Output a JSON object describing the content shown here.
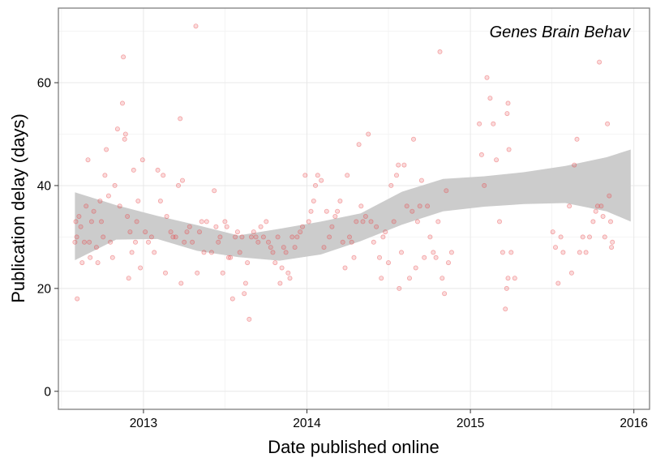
{
  "chart_data": {
    "type": "scatter",
    "annotation": "Genes Brain Behav",
    "xlabel": "Date published online",
    "ylabel": "Publication delay (days)",
    "xlim": [
      "2012-06-25",
      "2016-02-05"
    ],
    "ylim": [
      -3.5,
      74.5
    ],
    "x_ticks": [
      "2013",
      "2014",
      "2015",
      "2016"
    ],
    "y_ticks": [
      0,
      20,
      40,
      60
    ],
    "grid": true,
    "point_color": "#e8484a",
    "band_color": "#cccccc",
    "points": [
      [
        "2012-08-01",
        29
      ],
      [
        "2012-08-03",
        33
      ],
      [
        "2012-08-05",
        30
      ],
      [
        "2012-08-06",
        18
      ],
      [
        "2012-08-10",
        34
      ],
      [
        "2012-08-14",
        32
      ],
      [
        "2012-08-17",
        25
      ],
      [
        "2012-08-22",
        29
      ],
      [
        "2012-08-26",
        36
      ],
      [
        "2012-08-30",
        45
      ],
      [
        "2012-09-02",
        29
      ],
      [
        "2012-09-04",
        26
      ],
      [
        "2012-09-07",
        33
      ],
      [
        "2012-09-12",
        35
      ],
      [
        "2012-09-18",
        28
      ],
      [
        "2012-09-21",
        25
      ],
      [
        "2012-09-26",
        37
      ],
      [
        "2012-09-29",
        33
      ],
      [
        "2012-10-03",
        30
      ],
      [
        "2012-10-07",
        42
      ],
      [
        "2012-10-10",
        47
      ],
      [
        "2012-10-15",
        38
      ],
      [
        "2012-10-19",
        29
      ],
      [
        "2012-10-24",
        26
      ],
      [
        "2012-10-29",
        40
      ],
      [
        "2012-11-04",
        51
      ],
      [
        "2012-11-09",
        36
      ],
      [
        "2012-11-15",
        56
      ],
      [
        "2012-11-17",
        65
      ],
      [
        "2012-11-20",
        49
      ],
      [
        "2012-11-22",
        50
      ],
      [
        "2012-11-26",
        34
      ],
      [
        "2012-11-29",
        22
      ],
      [
        "2012-12-02",
        31
      ],
      [
        "2012-12-06",
        27
      ],
      [
        "2012-12-10",
        43
      ],
      [
        "2012-12-14",
        29
      ],
      [
        "2012-12-17",
        33
      ],
      [
        "2012-12-20",
        37
      ],
      [
        "2012-12-25",
        24
      ],
      [
        "2012-12-30",
        45
      ],
      [
        "2013-01-05",
        31
      ],
      [
        "2013-01-12",
        29
      ],
      [
        "2013-01-19",
        30
      ],
      [
        "2013-01-25",
        27
      ],
      [
        "2013-02-02",
        43
      ],
      [
        "2013-02-08",
        37
      ],
      [
        "2013-02-14",
        42
      ],
      [
        "2013-02-19",
        23
      ],
      [
        "2013-02-22",
        34
      ],
      [
        "2013-03-03",
        31
      ],
      [
        "2013-03-08",
        30
      ],
      [
        "2013-03-14",
        30
      ],
      [
        "2013-03-20",
        40
      ],
      [
        "2013-03-24",
        53
      ],
      [
        "2013-03-26",
        21
      ],
      [
        "2013-03-29",
        41
      ],
      [
        "2013-04-02",
        29
      ],
      [
        "2013-04-08",
        31
      ],
      [
        "2013-04-14",
        32
      ],
      [
        "2013-04-20",
        29
      ],
      [
        "2013-04-28",
        71
      ],
      [
        "2013-05-01",
        23
      ],
      [
        "2013-05-06",
        31
      ],
      [
        "2013-05-11",
        33
      ],
      [
        "2013-05-16",
        27
      ],
      [
        "2013-05-22",
        33
      ],
      [
        "2013-06-02",
        27
      ],
      [
        "2013-06-08",
        39
      ],
      [
        "2013-06-12",
        32
      ],
      [
        "2013-06-17",
        29
      ],
      [
        "2013-06-21",
        30
      ],
      [
        "2013-06-27",
        23
      ],
      [
        "2013-07-02",
        33
      ],
      [
        "2013-07-06",
        32
      ],
      [
        "2013-07-10",
        26
      ],
      [
        "2013-07-14",
        26
      ],
      [
        "2013-07-19",
        18
      ],
      [
        "2013-07-25",
        30
      ],
      [
        "2013-07-30",
        31
      ],
      [
        "2013-08-04",
        27
      ],
      [
        "2013-08-09",
        30
      ],
      [
        "2013-08-14",
        19
      ],
      [
        "2013-08-17",
        21
      ],
      [
        "2013-08-21",
        25
      ],
      [
        "2013-08-25",
        14
      ],
      [
        "2013-08-30",
        30
      ],
      [
        "2013-09-04",
        31
      ],
      [
        "2013-09-09",
        30
      ],
      [
        "2013-09-14",
        29
      ],
      [
        "2013-09-20",
        32
      ],
      [
        "2013-09-26",
        30
      ],
      [
        "2013-10-02",
        33
      ],
      [
        "2013-10-07",
        29
      ],
      [
        "2013-10-12",
        28
      ],
      [
        "2013-10-17",
        27
      ],
      [
        "2013-10-22",
        25
      ],
      [
        "2013-10-28",
        30
      ],
      [
        "2013-11-02",
        21
      ],
      [
        "2013-11-06",
        24
      ],
      [
        "2013-11-10",
        28
      ],
      [
        "2013-11-15",
        27
      ],
      [
        "2013-11-20",
        23
      ],
      [
        "2013-11-24",
        22
      ],
      [
        "2013-11-29",
        30
      ],
      [
        "2013-12-05",
        28
      ],
      [
        "2013-12-10",
        30
      ],
      [
        "2013-12-17",
        31
      ],
      [
        "2013-12-22",
        32
      ],
      [
        "2013-12-28",
        42
      ],
      [
        "2014-01-05",
        33
      ],
      [
        "2014-01-10",
        35
      ],
      [
        "2014-01-16",
        37
      ],
      [
        "2014-01-20",
        40
      ],
      [
        "2014-01-25",
        42
      ],
      [
        "2014-02-02",
        41
      ],
      [
        "2014-02-08",
        28
      ],
      [
        "2014-02-14",
        35
      ],
      [
        "2014-02-20",
        30
      ],
      [
        "2014-02-26",
        32
      ],
      [
        "2014-03-05",
        34
      ],
      [
        "2014-03-10",
        35
      ],
      [
        "2014-03-16",
        37
      ],
      [
        "2014-03-22",
        29
      ],
      [
        "2014-03-27",
        24
      ],
      [
        "2014-04-01",
        42
      ],
      [
        "2014-04-06",
        30
      ],
      [
        "2014-04-11",
        29
      ],
      [
        "2014-04-16",
        26
      ],
      [
        "2014-04-21",
        33
      ],
      [
        "2014-04-27",
        48
      ],
      [
        "2014-05-02",
        36
      ],
      [
        "2014-05-06",
        33
      ],
      [
        "2014-05-12",
        34
      ],
      [
        "2014-05-18",
        50
      ],
      [
        "2014-05-24",
        33
      ],
      [
        "2014-05-30",
        29
      ],
      [
        "2014-06-05",
        32
      ],
      [
        "2014-06-12",
        26
      ],
      [
        "2014-06-16",
        22
      ],
      [
        "2014-06-20",
        30
      ],
      [
        "2014-06-25",
        31
      ],
      [
        "2014-07-02",
        25
      ],
      [
        "2014-07-08",
        40
      ],
      [
        "2014-07-14",
        33
      ],
      [
        "2014-07-20",
        42
      ],
      [
        "2014-07-24",
        44
      ],
      [
        "2014-07-26",
        20
      ],
      [
        "2014-07-31",
        27
      ],
      [
        "2014-08-06",
        44
      ],
      [
        "2014-08-12",
        36
      ],
      [
        "2014-08-18",
        22
      ],
      [
        "2014-08-24",
        35
      ],
      [
        "2014-08-27",
        49
      ],
      [
        "2014-09-01",
        24
      ],
      [
        "2014-09-05",
        33
      ],
      [
        "2014-09-10",
        36
      ],
      [
        "2014-09-14",
        41
      ],
      [
        "2014-09-20",
        26
      ],
      [
        "2014-09-27",
        36
      ],
      [
        "2014-10-03",
        30
      ],
      [
        "2014-10-10",
        27
      ],
      [
        "2014-10-16",
        26
      ],
      [
        "2014-10-21",
        33
      ],
      [
        "2014-10-25",
        66
      ],
      [
        "2014-10-30",
        22
      ],
      [
        "2014-11-04",
        19
      ],
      [
        "2014-11-08",
        39
      ],
      [
        "2014-11-13",
        25
      ],
      [
        "2014-11-20",
        27
      ],
      [
        "2015-01-21",
        52
      ],
      [
        "2015-01-26",
        46
      ],
      [
        "2015-02-01",
        40
      ],
      [
        "2015-02-07",
        61
      ],
      [
        "2015-02-14",
        57
      ],
      [
        "2015-02-21",
        52
      ],
      [
        "2015-02-28",
        45
      ],
      [
        "2015-03-07",
        33
      ],
      [
        "2015-03-14",
        27
      ],
      [
        "2015-03-20",
        16
      ],
      [
        "2015-03-23",
        20
      ],
      [
        "2015-03-26",
        22
      ],
      [
        "2015-04-02",
        27
      ],
      [
        "2015-04-10",
        22
      ],
      [
        "2015-03-24",
        54
      ],
      [
        "2015-03-26",
        56
      ],
      [
        "2015-03-28",
        47
      ],
      [
        "2015-07-04",
        31
      ],
      [
        "2015-07-10",
        28
      ],
      [
        "2015-07-16",
        21
      ],
      [
        "2015-07-22",
        30
      ],
      [
        "2015-07-27",
        27
      ],
      [
        "2015-08-10",
        36
      ],
      [
        "2015-08-15",
        23
      ],
      [
        "2015-08-21",
        44
      ],
      [
        "2015-08-27",
        49
      ],
      [
        "2015-09-02",
        27
      ],
      [
        "2015-09-09",
        30
      ],
      [
        "2015-09-16",
        27
      ],
      [
        "2015-09-24",
        30
      ],
      [
        "2015-10-02",
        33
      ],
      [
        "2015-10-08",
        35
      ],
      [
        "2015-10-12",
        36
      ],
      [
        "2015-10-16",
        64
      ],
      [
        "2015-10-20",
        36
      ],
      [
        "2015-10-24",
        34
      ],
      [
        "2015-10-28",
        30
      ],
      [
        "2015-11-03",
        52
      ],
      [
        "2015-11-07",
        38
      ],
      [
        "2015-11-10",
        33
      ],
      [
        "2015-11-12",
        28
      ],
      [
        "2015-11-14",
        29
      ]
    ],
    "smooth_band": [
      {
        "x": "2012-08-01",
        "lo": 25.5,
        "hi": 38.7
      },
      {
        "x": "2012-11-01",
        "lo": 29.5,
        "hi": 36.2
      },
      {
        "x": "2013-02-01",
        "lo": 29.6,
        "hi": 34.1
      },
      {
        "x": "2013-05-01",
        "lo": 27.3,
        "hi": 32.3
      },
      {
        "x": "2013-08-01",
        "lo": 26.1,
        "hi": 30.3
      },
      {
        "x": "2013-11-01",
        "lo": 25.4,
        "hi": 31.6
      },
      {
        "x": "2014-02-01",
        "lo": 26.6,
        "hi": 33.0
      },
      {
        "x": "2014-05-01",
        "lo": 29.2,
        "hi": 34.6
      },
      {
        "x": "2014-08-01",
        "lo": 32.4,
        "hi": 38.8
      },
      {
        "x": "2014-11-01",
        "lo": 35.0,
        "hi": 41.3
      },
      {
        "x": "2015-02-01",
        "lo": 35.9,
        "hi": 41.8
      },
      {
        "x": "2015-05-01",
        "lo": 36.4,
        "hi": 42.6
      },
      {
        "x": "2015-08-01",
        "lo": 36.6,
        "hi": 43.8
      },
      {
        "x": "2015-11-01",
        "lo": 35.0,
        "hi": 45.5
      },
      {
        "x": "2015-12-25",
        "lo": 33.0,
        "hi": 47.0
      }
    ]
  }
}
